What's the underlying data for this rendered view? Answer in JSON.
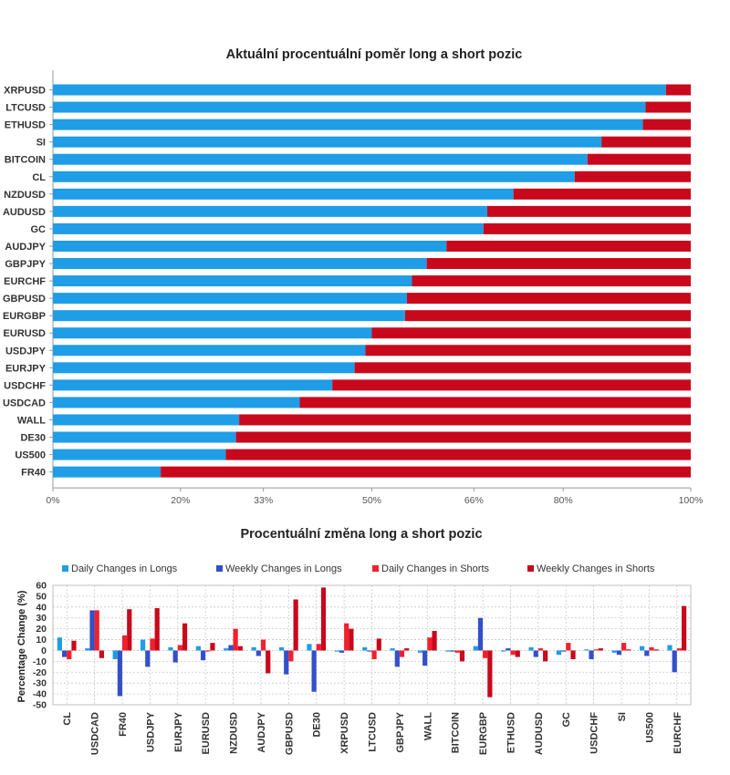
{
  "chart_data": [
    {
      "type": "bar",
      "orientation": "horizontal",
      "stacked": true,
      "title": "Aktuální procentuální poměr long a short pozic",
      "categories": [
        "XRPUSD",
        "LTCUSD",
        "ETHUSD",
        "SI",
        "BITCOIN",
        "CL",
        "NZDUSD",
        "AUDUSD",
        "GC",
        "AUDJPY",
        "GBPJPY",
        "EURCHF",
        "GBPUSD",
        "EURGBP",
        "EURUSD",
        "USDJPY",
        "EURJPY",
        "USDCHF",
        "USDCAD",
        "WALL",
        "DE30",
        "US500",
        "FR40"
      ],
      "long_pct": [
        96.1,
        92.9,
        92.5,
        86.0,
        83.8,
        81.8,
        72.2,
        68.1,
        67.5,
        61.7,
        58.6,
        56.3,
        55.5,
        55.2,
        50.0,
        49.0,
        47.3,
        43.8,
        38.7,
        29.2,
        28.7,
        27.1,
        16.9
      ],
      "xticks": [
        "0%",
        "20%",
        "33%",
        "50%",
        "66%",
        "80%",
        "100%"
      ],
      "xtick_values": [
        0,
        20,
        33,
        50,
        66,
        80,
        100
      ],
      "xlim": [
        0,
        100
      ],
      "colors": {
        "long": "#1f9de6",
        "short": "#c8081c"
      }
    },
    {
      "type": "bar",
      "title": "Procentuální změna long a short pozic",
      "ylabel": "Percentage Change (%)",
      "ylim": [
        -50,
        60
      ],
      "yticks": [
        60,
        50,
        40,
        30,
        20,
        10,
        0,
        -10,
        -20,
        -30,
        -40,
        -50
      ],
      "grid": true,
      "legend": "top",
      "categories": [
        "CL",
        "USDCAD",
        "FR40",
        "USDJPY",
        "EURJPY",
        "EURUSD",
        "NZDUSD",
        "AUDJPY",
        "GBPUSD",
        "DE30",
        "XRPUSD",
        "LTCUSD",
        "GBPJPY",
        "WALL",
        "BITCOIN",
        "EURGBP",
        "ETHUSD",
        "AUDUSD",
        "GC",
        "USDCHF",
        "SI",
        "US500",
        "EURCHF"
      ],
      "series": [
        {
          "name": "Daily Changes in Longs",
          "color": "#1f9de6",
          "values": [
            12,
            2,
            -8,
            10,
            3,
            4,
            2,
            3,
            3,
            6,
            -1,
            3,
            2,
            -2,
            -1,
            4,
            -1,
            3,
            -4,
            1,
            -2,
            4,
            5
          ]
        },
        {
          "name": "Weekly Changes in Longs",
          "color": "#3350c8",
          "values": [
            -6,
            37,
            -42,
            -15,
            -11,
            -9,
            5,
            -5,
            -22,
            -38,
            -2,
            -1,
            -15,
            -14,
            -1,
            30,
            2,
            -6,
            -1,
            -8,
            -4,
            -5,
            -20
          ]
        },
        {
          "name": "Daily Changes in Shorts",
          "color": "#f2202c",
          "values": [
            -8,
            37,
            14,
            11,
            5,
            -1,
            20,
            10,
            -10,
            6,
            25,
            -8,
            -6,
            12,
            -2,
            -7,
            -4,
            2,
            7,
            1,
            7,
            3,
            2
          ]
        },
        {
          "name": "Weekly Changes in Shorts",
          "color": "#c8081c",
          "values": [
            9,
            -7,
            38,
            39,
            25,
            7,
            4,
            -21,
            47,
            58,
            20,
            11,
            2,
            18,
            -10,
            -43,
            -6,
            -10,
            -8,
            2,
            1,
            1,
            41
          ]
        }
      ]
    }
  ]
}
